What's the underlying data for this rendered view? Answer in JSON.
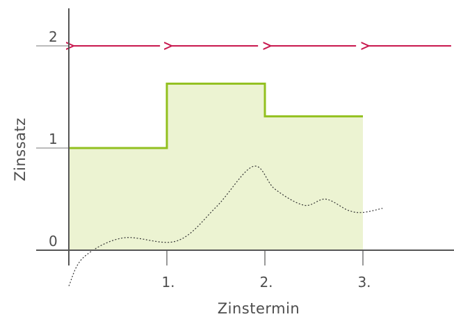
{
  "chart_data": {
    "type": "area",
    "title": "",
    "xlabel": "Zinstermin",
    "ylabel": "Zinssatz",
    "xlim": [
      0,
      3.9
    ],
    "ylim": [
      -0.2,
      2.4
    ],
    "x_ticks": [
      {
        "value": 1,
        "label": "1."
      },
      {
        "value": 2,
        "label": "2."
      },
      {
        "value": 3,
        "label": "3."
      }
    ],
    "y_ticks": [
      {
        "value": 0,
        "label": "0"
      },
      {
        "value": 1,
        "label": "1"
      },
      {
        "value": 2,
        "label": "2"
      }
    ],
    "series": [
      {
        "style": "step",
        "color": "#92c01f",
        "fill": "#ecf3d2",
        "points": [
          {
            "x": 0,
            "y": 1.0
          },
          {
            "x": 1,
            "y": 1.0
          },
          {
            "x": 1,
            "y": 1.63
          },
          {
            "x": 2,
            "y": 1.63
          },
          {
            "x": 2,
            "y": 1.31
          },
          {
            "x": 3,
            "y": 1.31
          }
        ]
      },
      {
        "style": "dotted",
        "color": "#333333",
        "points": [
          {
            "x": 0.0,
            "y": -0.35
          },
          {
            "x": 0.15,
            "y": -0.07
          },
          {
            "x": 0.55,
            "y": 0.12
          },
          {
            "x": 1.1,
            "y": 0.09
          },
          {
            "x": 1.5,
            "y": 0.42
          },
          {
            "x": 1.88,
            "y": 0.82
          },
          {
            "x": 2.1,
            "y": 0.6
          },
          {
            "x": 2.4,
            "y": 0.44
          },
          {
            "x": 2.62,
            "y": 0.5
          },
          {
            "x": 2.85,
            "y": 0.39
          },
          {
            "x": 3.0,
            "y": 0.37
          },
          {
            "x": 3.2,
            "y": 0.41
          }
        ]
      }
    ],
    "arrows": {
      "y": 2,
      "direction": "left",
      "color": "#c8174e",
      "segments": [
        [
          0.93,
          0.05
        ],
        [
          1.93,
          1.05
        ],
        [
          2.93,
          2.06
        ],
        [
          3.9,
          3.06
        ]
      ]
    }
  }
}
